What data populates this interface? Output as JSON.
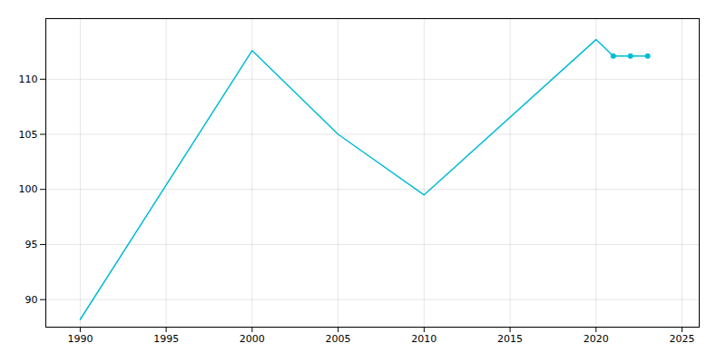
{
  "chart_data": {
    "type": "line",
    "x": [
      1990,
      2000,
      2005,
      2010,
      2020,
      2021,
      2022,
      2023
    ],
    "series": [
      {
        "type": "line",
        "color": "#00bcd4",
        "values": [
          88.2,
          112.6,
          105.0,
          99.5,
          113.6,
          112.1,
          112.1,
          112.1
        ]
      },
      {
        "type": "scatter",
        "marker": "circle",
        "color": "#00bcd4",
        "values": [
          null,
          null,
          null,
          null,
          null,
          112.1,
          112.1,
          112.1
        ]
      }
    ],
    "xlim": [
      1988,
      2026
    ],
    "ylim": [
      87.5,
      115.5
    ],
    "xticks": [
      1990,
      1995,
      2000,
      2005,
      2010,
      2015,
      2020,
      2025
    ],
    "yticks": [
      90,
      95,
      100,
      105,
      110
    ],
    "grid": true
  }
}
